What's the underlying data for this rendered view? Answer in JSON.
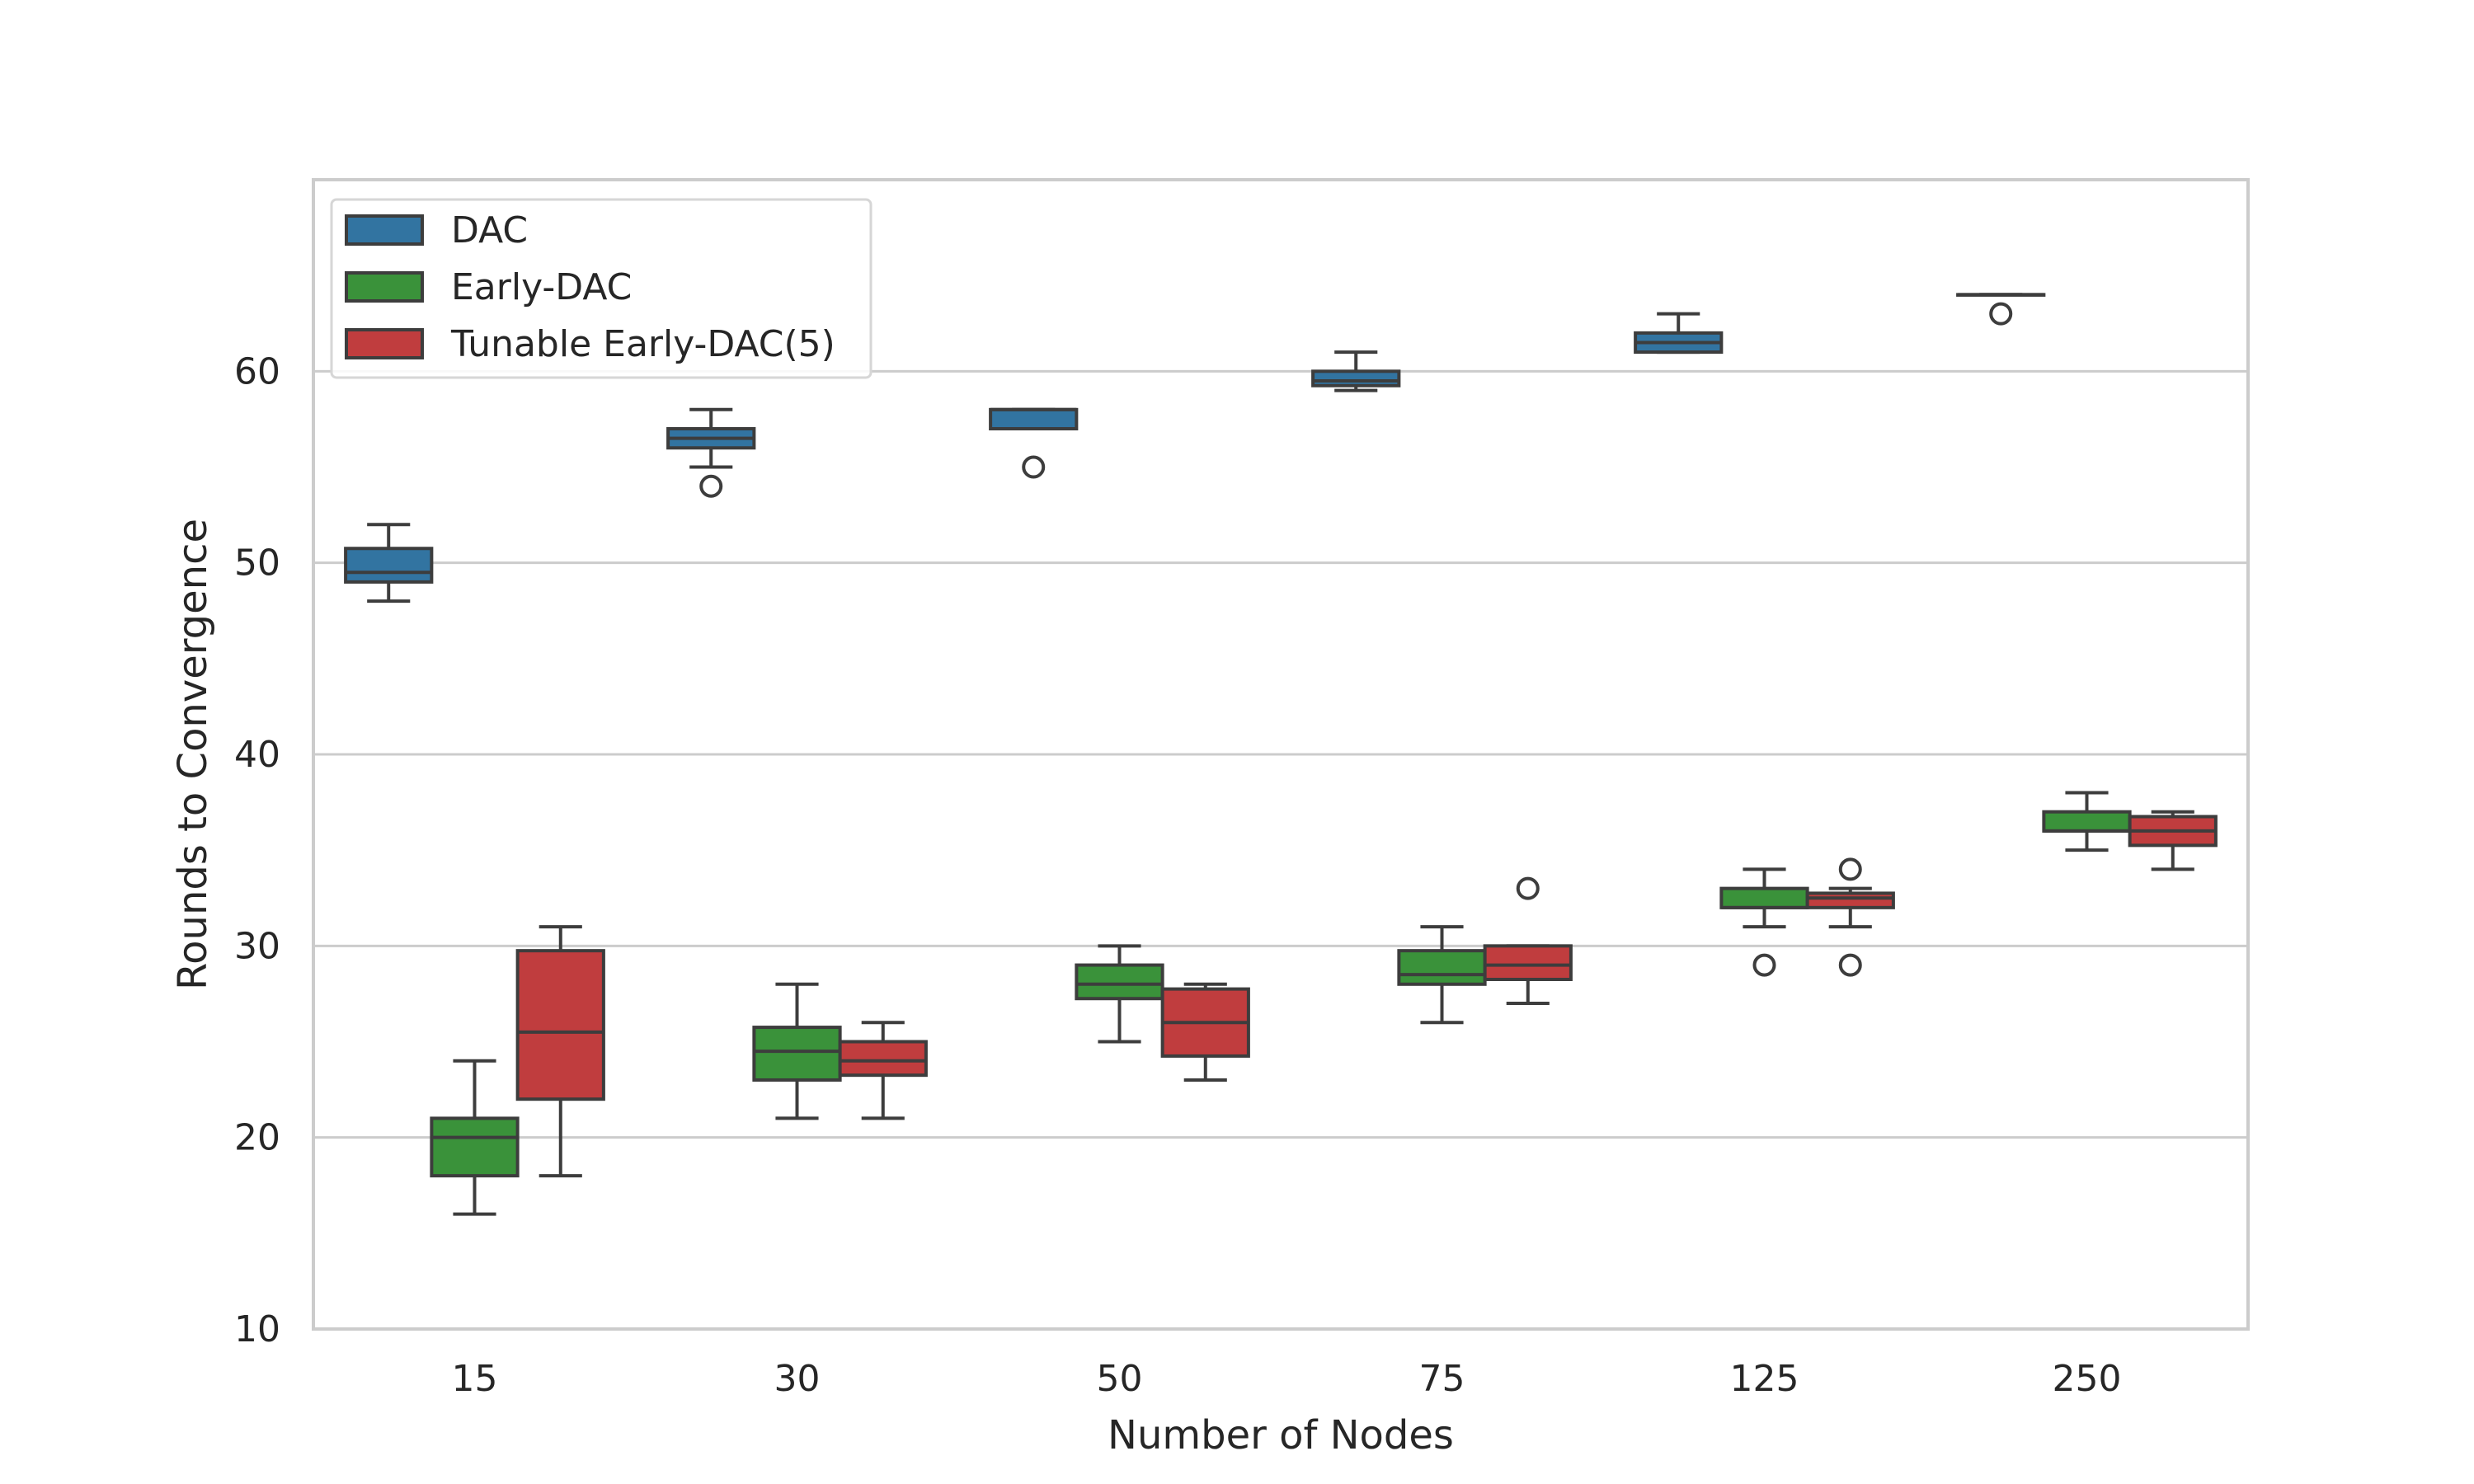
{
  "chart_data": {
    "type": "box",
    "xlabel": "Number of Nodes",
    "ylabel": "Rounds to Convergence",
    "ylim": [
      10,
      70
    ],
    "yticks": [
      10,
      20,
      30,
      40,
      50,
      60
    ],
    "categories": [
      "15",
      "30",
      "50",
      "75",
      "125",
      "250"
    ],
    "grid": "horizontal",
    "legend_position": "top-left",
    "series": [
      {
        "name": "DAC",
        "color": "#3274a1",
        "boxes": [
          {
            "category": "15",
            "whislo": 48,
            "q1": 49,
            "med": 49.5,
            "q3": 50.75,
            "whishi": 52,
            "fliers": []
          },
          {
            "category": "30",
            "whislo": 55,
            "q1": 56,
            "med": 56.5,
            "q3": 57,
            "whishi": 58,
            "fliers": [
              54
            ]
          },
          {
            "category": "50",
            "whislo": 57,
            "q1": 57,
            "med": 58,
            "q3": 58,
            "whishi": 58,
            "fliers": [
              55
            ]
          },
          {
            "category": "75",
            "whislo": 59,
            "q1": 59.25,
            "med": 59.5,
            "q3": 60,
            "whishi": 61,
            "fliers": []
          },
          {
            "category": "125",
            "whislo": 61,
            "q1": 61,
            "med": 61.5,
            "q3": 62,
            "whishi": 63,
            "fliers": []
          },
          {
            "category": "250",
            "whislo": 64,
            "q1": 64,
            "med": 64,
            "q3": 64,
            "whishi": 64,
            "fliers": [
              63
            ]
          }
        ]
      },
      {
        "name": "Early-DAC",
        "color": "#3a923a",
        "boxes": [
          {
            "category": "15",
            "whislo": 16,
            "q1": 18,
            "med": 20,
            "q3": 21,
            "whishi": 24,
            "fliers": []
          },
          {
            "category": "30",
            "whislo": 21,
            "q1": 23,
            "med": 24.5,
            "q3": 25.75,
            "whishi": 28,
            "fliers": []
          },
          {
            "category": "50",
            "whislo": 25,
            "q1": 27.25,
            "med": 28,
            "q3": 29,
            "whishi": 30,
            "fliers": []
          },
          {
            "category": "75",
            "whislo": 26,
            "q1": 28,
            "med": 28.5,
            "q3": 29.75,
            "whishi": 31,
            "fliers": []
          },
          {
            "category": "125",
            "whislo": 31,
            "q1": 32,
            "med": 32,
            "q3": 33,
            "whishi": 34,
            "fliers": [
              29
            ]
          },
          {
            "category": "250",
            "whislo": 35,
            "q1": 36,
            "med": 36,
            "q3": 37,
            "whishi": 38,
            "fliers": []
          }
        ]
      },
      {
        "name": "Tunable Early-DAC(5)",
        "color": "#c03d3e",
        "boxes": [
          {
            "category": "15",
            "whislo": 18,
            "q1": 22,
            "med": 25.5,
            "q3": 29.75,
            "whishi": 31,
            "fliers": []
          },
          {
            "category": "30",
            "whislo": 21,
            "q1": 23.25,
            "med": 24,
            "q3": 25,
            "whishi": 26,
            "fliers": []
          },
          {
            "category": "50",
            "whislo": 23,
            "q1": 24.25,
            "med": 26,
            "q3": 27.75,
            "whishi": 28,
            "fliers": []
          },
          {
            "category": "75",
            "whislo": 27,
            "q1": 28.25,
            "med": 29,
            "q3": 30,
            "whishi": 30,
            "fliers": [
              33
            ]
          },
          {
            "category": "125",
            "whislo": 31,
            "q1": 32,
            "med": 32.5,
            "q3": 32.75,
            "whishi": 33,
            "fliers": [
              34,
              29
            ]
          },
          {
            "category": "250",
            "whislo": 34,
            "q1": 35.25,
            "med": 36,
            "q3": 36.75,
            "whishi": 37,
            "fliers": []
          }
        ]
      }
    ]
  }
}
